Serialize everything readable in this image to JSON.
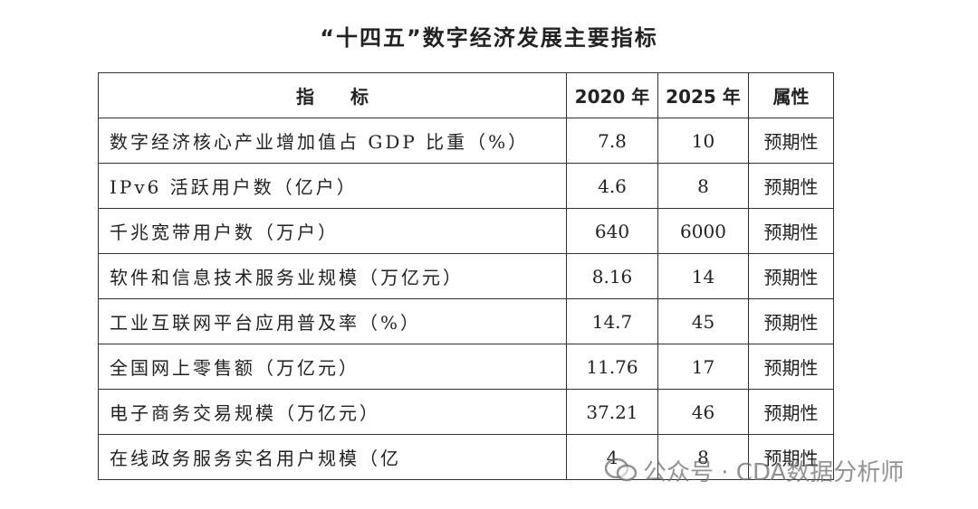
{
  "title": "“十四五”数字经济发展主要指标",
  "table": {
    "header": [
      "指　　标",
      "2020 年",
      "2025 年",
      "属性"
    ],
    "rows": [
      [
        "数字经济核心产业增加值占 GDP 比重（%）",
        "7.8",
        "10",
        "预期性"
      ],
      [
        "IPv6 活跃用户数（亿户）",
        "4.6",
        "8",
        "预期性"
      ],
      [
        "千兆宽带用户数（万户）",
        "640",
        "6000",
        "预期性"
      ],
      [
        "软件和信息技术服务业规模（万亿元）",
        "8.16",
        "14",
        "预期性"
      ],
      [
        "工业互联网平台应用普及率（%）",
        "14.7",
        "45",
        "预期性"
      ],
      [
        "全国网上零售额（万亿元）",
        "11.76",
        "17",
        "预期性"
      ],
      [
        "电子商务交易规模（万亿元）",
        "37.21",
        "46",
        "预期性"
      ],
      [
        "在线政务服务实名用户规模（亿",
        "4",
        "8",
        "预期性"
      ]
    ]
  },
  "watermark": "公众号 · CDA数据分析师"
}
